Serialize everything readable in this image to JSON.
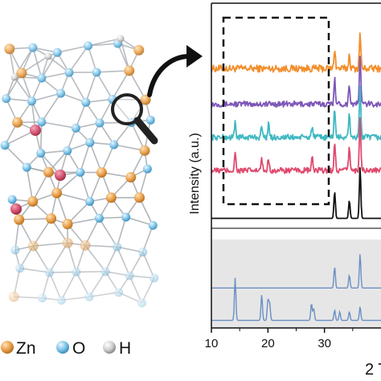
{
  "legend": [
    {
      "element": "Zn",
      "color": "#e9a04a"
    },
    {
      "element": "O",
      "color": "#7cc3e8"
    },
    {
      "element": "H",
      "color": "#d9d9d9"
    }
  ],
  "colors": {
    "orange": "#f28e2b",
    "purple": "#7e57b8",
    "teal": "#3fb8c2",
    "pink": "#e04a6e",
    "black": "#111111",
    "blue_ref": "#6b8fc4",
    "ref_panel_bg": "#e6e6e6",
    "magnifier": "#222222"
  },
  "chart_data": {
    "type": "line",
    "xlabel": "2 T",
    "ylabel": "Intensity (a.u.)",
    "xlim": [
      10,
      40
    ],
    "xticks": [
      10,
      20,
      30
    ],
    "grid": false,
    "series": [
      {
        "color": "#f28e2b",
        "baseline": 0.72,
        "noise": 0.016,
        "peaks": [
          [
            31.8,
            0.09
          ],
          [
            34.4,
            0.06
          ],
          [
            36.3,
            0.16
          ]
        ]
      },
      {
        "color": "#7e57b8",
        "baseline": 0.56,
        "noise": 0.013,
        "peaks": [
          [
            31.8,
            0.12
          ],
          [
            34.4,
            0.09
          ],
          [
            36.3,
            0.22
          ]
        ]
      },
      {
        "color": "#3fb8c2",
        "baseline": 0.41,
        "noise": 0.013,
        "peaks": [
          [
            14.2,
            0.07
          ],
          [
            18.9,
            0.05
          ],
          [
            20.1,
            0.06
          ],
          [
            27.8,
            0.05
          ],
          [
            31.8,
            0.13
          ],
          [
            34.4,
            0.1
          ],
          [
            36.3,
            0.24
          ]
        ]
      },
      {
        "color": "#e04a6e",
        "baseline": 0.26,
        "noise": 0.013,
        "peaks": [
          [
            14.2,
            0.08
          ],
          [
            18.9,
            0.05
          ],
          [
            20.1,
            0.06
          ],
          [
            27.8,
            0.06
          ],
          [
            31.8,
            0.12
          ],
          [
            34.4,
            0.11
          ],
          [
            36.3,
            0.25
          ]
        ]
      },
      {
        "color": "#111111",
        "baseline": 0.045,
        "noise": 0.0,
        "peaks": [
          [
            31.8,
            0.12
          ],
          [
            34.4,
            0.08
          ],
          [
            36.3,
            0.23
          ]
        ]
      }
    ],
    "reference_patterns": [
      {
        "color": "#6b8fc4",
        "baseline": 0.45,
        "peaks": [
          [
            31.8,
            0.25
          ],
          [
            34.4,
            0.15
          ],
          [
            36.3,
            0.4
          ]
        ]
      },
      {
        "color": "#6b8fc4",
        "baseline": 0.07,
        "peaks": [
          [
            14.2,
            0.5
          ],
          [
            18.9,
            0.3
          ],
          [
            20.0,
            0.24
          ],
          [
            20.3,
            0.2
          ],
          [
            27.7,
            0.2
          ],
          [
            28.1,
            0.14
          ],
          [
            31.8,
            0.12
          ],
          [
            32.7,
            0.1
          ],
          [
            34.4,
            0.1
          ],
          [
            36.3,
            0.16
          ]
        ]
      }
    ],
    "highlight_region": [
      12,
      31
    ]
  }
}
